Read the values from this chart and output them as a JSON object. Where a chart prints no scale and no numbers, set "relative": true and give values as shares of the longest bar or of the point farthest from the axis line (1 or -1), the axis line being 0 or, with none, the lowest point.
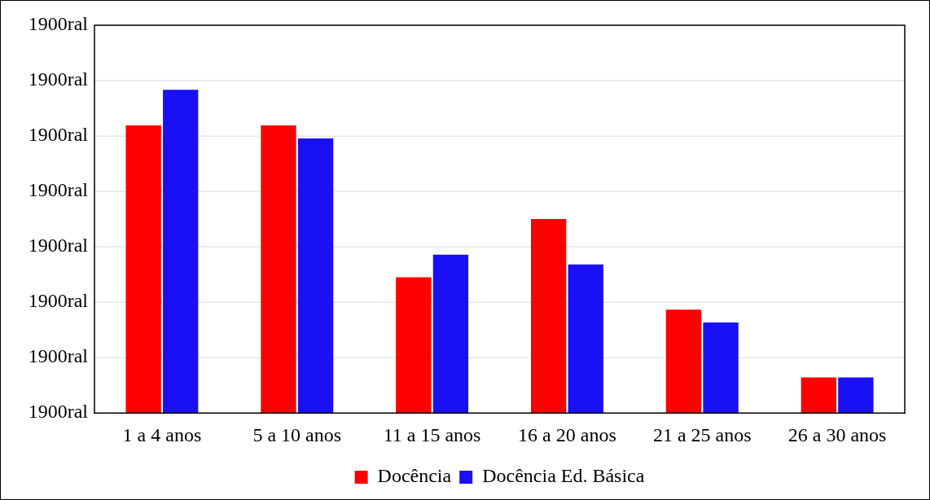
{
  "chart_data": {
    "type": "bar",
    "categories": [
      "1 a 4 anos",
      "5 a 10 anos",
      "11 a 15 anos",
      "16 a 20 anos",
      "21 a 25 anos",
      "26 a 30 anos"
    ],
    "series": [
      {
        "name": "Docência",
        "color": "#ff0000",
        "values": [
          0.89,
          0.89,
          0.42,
          0.6,
          0.32,
          0.11
        ]
      },
      {
        "name": "Docência Ed. Básica",
        "color": "#1a10f5",
        "values": [
          1,
          0.85,
          0.49,
          0.46,
          0.28,
          0.11
        ]
      }
    ],
    "relative": true,
    "annotations": [
      "1900ral",
      "1900ral",
      "1900ral",
      "1900ral",
      "1900ral",
      "1900ral",
      "1900ral",
      "1900ral"
    ],
    "grid": "y",
    "legend": "bottom"
  }
}
